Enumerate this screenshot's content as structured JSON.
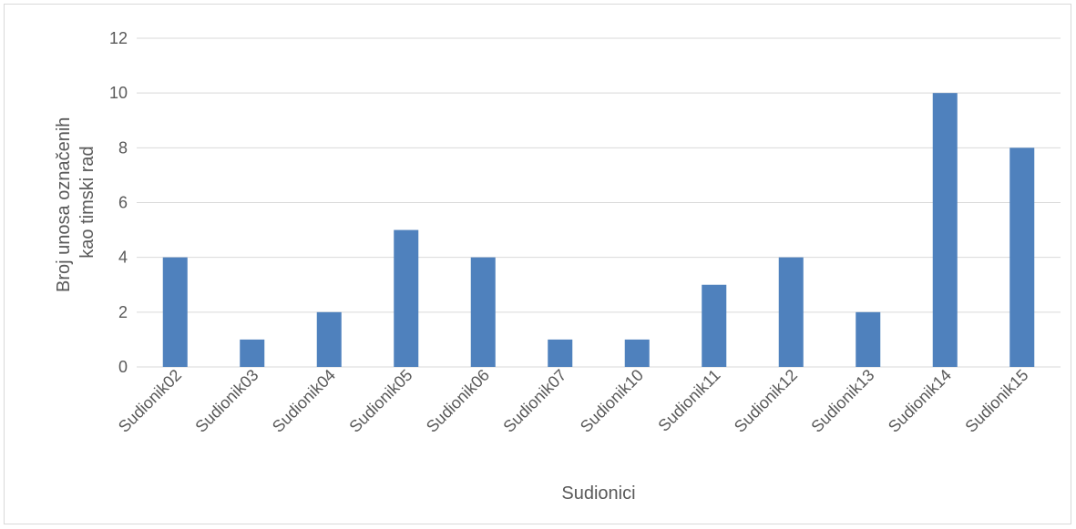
{
  "chart_data": {
    "type": "bar",
    "categories": [
      "Sudionik02",
      "Sudionik03",
      "Sudionik04",
      "Sudionik05",
      "Sudionik06",
      "Sudionik07",
      "Sudionik10",
      "Sudionik11",
      "Sudionik12",
      "Sudionik13",
      "Sudionik14",
      "Sudionik15"
    ],
    "series": [
      {
        "values": [
          4,
          1,
          2,
          5,
          4,
          1,
          1,
          3,
          4,
          2,
          10,
          8
        ]
      }
    ],
    "xlabel": "Sudionici",
    "ylabel_lines": [
      "Broj unosa označenih",
      "kao timski rad"
    ],
    "ylim": [
      0,
      12
    ],
    "yticks": [
      0,
      2,
      4,
      6,
      8,
      10,
      12
    ],
    "grid": true,
    "legend": "none",
    "colors": {
      "bar": "#4f81bd",
      "grid": "#d9d9d9",
      "text": "#595959"
    }
  }
}
